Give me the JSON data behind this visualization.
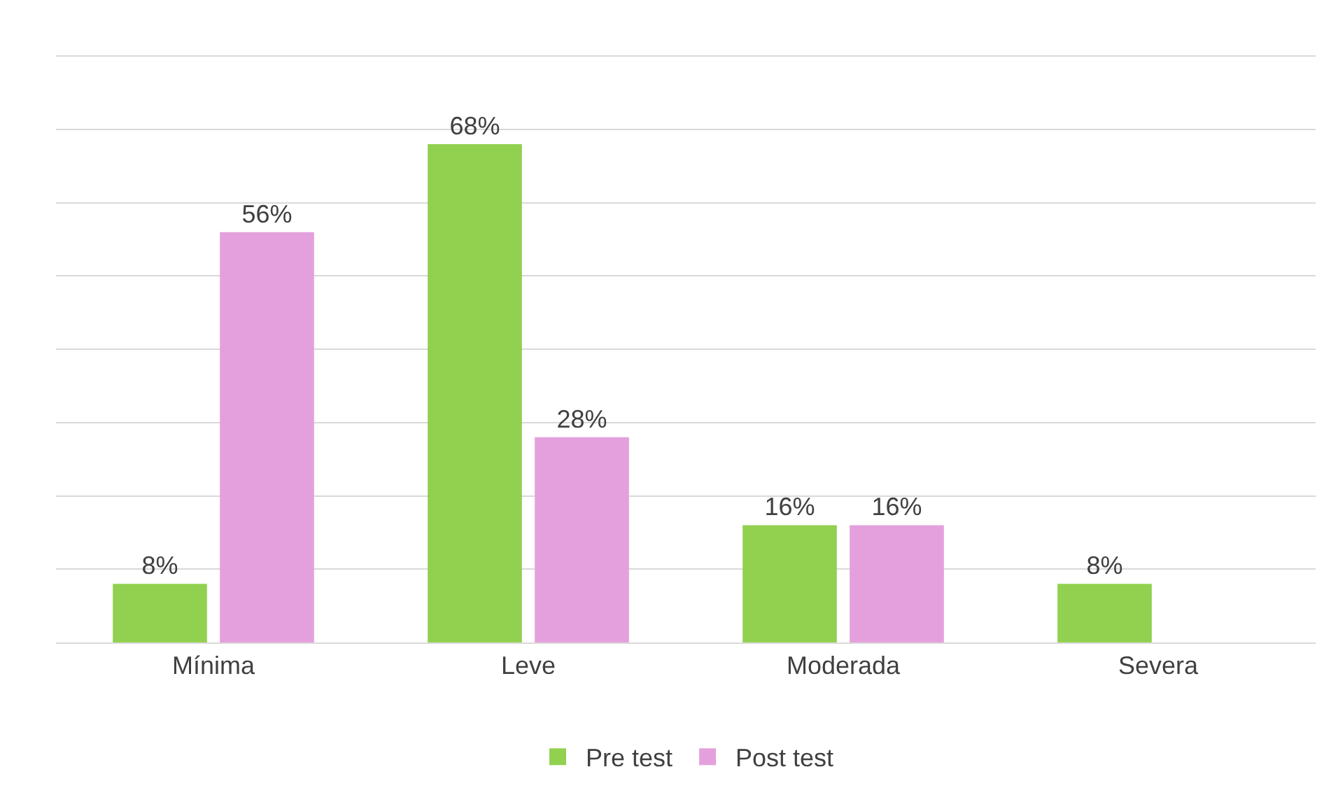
{
  "chart_data": {
    "type": "bar",
    "categories": [
      "Mínima",
      "Leve",
      "Moderada",
      "Severa"
    ],
    "series": [
      {
        "name": "Pre test",
        "color": "#92d050",
        "values": [
          8,
          68,
          16,
          8
        ],
        "value_labels": [
          "8%",
          "68%",
          "16%",
          "8%"
        ]
      },
      {
        "name": "Post test",
        "color": "#e4a0dc",
        "values": [
          56,
          28,
          16,
          null
        ],
        "value_labels": [
          "56%",
          "28%",
          "16%",
          null
        ]
      }
    ],
    "yticks": [
      {
        "value": 0,
        "label": null
      },
      {
        "value": 10,
        "label": null
      },
      {
        "value": 20,
        "label": null
      },
      {
        "value": 30,
        "label": null
      },
      {
        "value": 40,
        "label": null
      },
      {
        "value": 50,
        "label": null
      },
      {
        "value": 60,
        "label": null
      },
      {
        "value": 70,
        "label": null
      },
      {
        "value": 80,
        "label": null
      }
    ],
    "tick_labels": "x",
    "grid": "y",
    "legend": "bottom"
  }
}
